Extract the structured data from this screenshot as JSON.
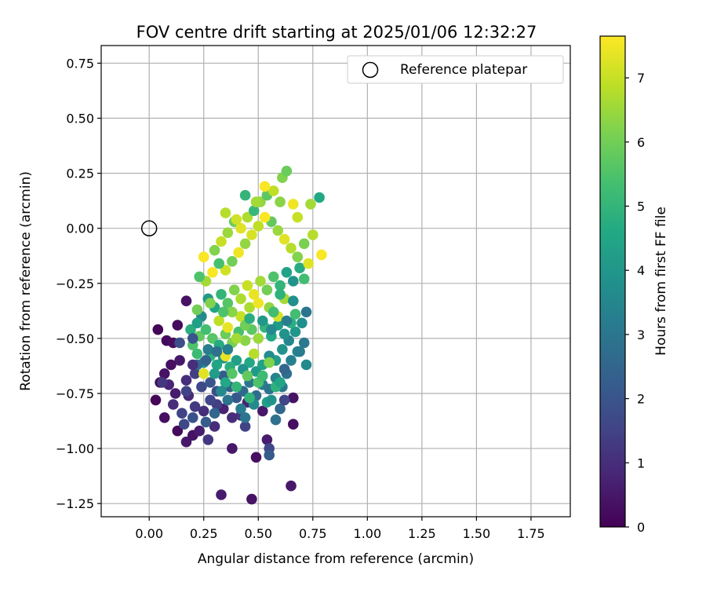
{
  "chart_data": {
    "type": "scatter",
    "title": "FOV centre drift starting at 2025/01/06 12:32:27",
    "xlabel": "Angular distance from reference (arcmin)",
    "ylabel": "Rotation from reference (arcmin)",
    "xlim": [
      -0.22,
      1.93
    ],
    "ylim": [
      -1.31,
      0.83
    ],
    "xticks": [
      0.0,
      0.25,
      0.5,
      0.75,
      1.0,
      1.25,
      1.5,
      1.75
    ],
    "xtick_labels": [
      "0.00",
      "0.25",
      "0.50",
      "0.75",
      "1.00",
      "1.25",
      "1.50",
      "1.75"
    ],
    "yticks": [
      0.75,
      0.5,
      0.25,
      0.0,
      -0.25,
      -0.5,
      -0.75,
      -1.0,
      -1.25
    ],
    "ytick_labels": [
      "0.75",
      "0.50",
      "0.25",
      "0.00",
      "−0.25",
      "−0.50",
      "−0.75",
      "−1.00",
      "−1.25"
    ],
    "grid": true,
    "legend": {
      "placement": "top-right",
      "entries": [
        "Reference platepar"
      ]
    },
    "reference": {
      "name": "Reference platepar",
      "x": 0.0,
      "y": 0.0,
      "marker": "open-circle"
    },
    "colorbar": {
      "label": "Hours from first FF file",
      "min": 0,
      "max": 7.65,
      "ticks": [
        0,
        1,
        2,
        3,
        4,
        5,
        6,
        7
      ],
      "tick_labels": [
        "0",
        "1",
        "2",
        "3",
        "4",
        "5",
        "6",
        "7"
      ],
      "colormap": "viridis"
    },
    "series": [
      {
        "color_by": "hours",
        "points": [
          [
            0.04,
            -0.46,
            0.1
          ],
          [
            0.08,
            -0.51,
            0.2
          ],
          [
            0.11,
            -0.52,
            0.3
          ],
          [
            0.13,
            -0.44,
            0.2
          ],
          [
            0.17,
            -0.33,
            0.4
          ],
          [
            0.14,
            -0.6,
            0.5
          ],
          [
            0.1,
            -0.62,
            0.3
          ],
          [
            0.07,
            -0.66,
            0.4
          ],
          [
            0.05,
            -0.7,
            0.2
          ],
          [
            0.03,
            -0.78,
            0.1
          ],
          [
            0.07,
            -0.86,
            0.3
          ],
          [
            0.13,
            -0.92,
            0.2
          ],
          [
            0.17,
            -0.97,
            0.5
          ],
          [
            0.2,
            -0.94,
            0.4
          ],
          [
            0.23,
            -0.92,
            0.6
          ],
          [
            0.27,
            -0.96,
            1.2
          ],
          [
            0.3,
            -0.9,
            1.0
          ],
          [
            0.33,
            -1.21,
            0.6
          ],
          [
            0.38,
            -1.0,
            0.5
          ],
          [
            0.47,
            -1.23,
            0.4
          ],
          [
            0.49,
            -1.04,
            0.3
          ],
          [
            0.54,
            -0.96,
            0.6
          ],
          [
            0.55,
            -1.0,
            1.6
          ],
          [
            0.55,
            -1.03,
            2.2
          ],
          [
            0.65,
            -1.17,
            0.5
          ],
          [
            0.66,
            -0.89,
            0.3
          ],
          [
            0.66,
            -0.77,
            0.4
          ],
          [
            0.58,
            -0.87,
            2.8
          ],
          [
            0.6,
            -0.82,
            2.5
          ],
          [
            0.62,
            -0.78,
            1.6
          ],
          [
            0.52,
            -0.83,
            0.5
          ],
          [
            0.45,
            -0.79,
            0.8
          ],
          [
            0.42,
            -0.85,
            1.2
          ],
          [
            0.44,
            -0.9,
            1.5
          ],
          [
            0.38,
            -0.86,
            1.0
          ],
          [
            0.34,
            -0.82,
            0.7
          ],
          [
            0.31,
            -0.8,
            1.4
          ],
          [
            0.28,
            -0.78,
            1.6
          ],
          [
            0.25,
            -0.83,
            1.0
          ],
          [
            0.21,
            -0.81,
            1.3
          ],
          [
            0.18,
            -0.76,
            0.9
          ],
          [
            0.15,
            -0.84,
            1.5
          ],
          [
            0.12,
            -0.75,
            0.6
          ],
          [
            0.09,
            -0.71,
            0.8
          ],
          [
            0.06,
            -0.7,
            1.2
          ],
          [
            0.17,
            -0.69,
            1.0
          ],
          [
            0.21,
            -0.66,
            1.4
          ],
          [
            0.24,
            -0.72,
            1.7
          ],
          [
            0.28,
            -0.7,
            2.0
          ],
          [
            0.31,
            -0.74,
            1.8
          ],
          [
            0.34,
            -0.67,
            2.2
          ],
          [
            0.37,
            -0.72,
            2.4
          ],
          [
            0.4,
            -0.77,
            2.1
          ],
          [
            0.43,
            -0.74,
            2.6
          ],
          [
            0.46,
            -0.7,
            3.0
          ],
          [
            0.49,
            -0.76,
            2.7
          ],
          [
            0.52,
            -0.71,
            3.2
          ],
          [
            0.55,
            -0.73,
            2.9
          ],
          [
            0.58,
            -0.68,
            3.4
          ],
          [
            0.61,
            -0.72,
            3.1
          ],
          [
            0.63,
            -0.66,
            2.8
          ],
          [
            0.65,
            -0.6,
            3.3
          ],
          [
            0.68,
            -0.56,
            3.5
          ],
          [
            0.71,
            -0.52,
            3.1
          ],
          [
            0.72,
            -0.62,
            3.6
          ],
          [
            0.72,
            -0.38,
            3.0
          ],
          [
            0.7,
            -0.43,
            3.8
          ],
          [
            0.67,
            -0.47,
            4.0
          ],
          [
            0.64,
            -0.51,
            3.5
          ],
          [
            0.61,
            -0.55,
            3.9
          ],
          [
            0.58,
            -0.6,
            4.2
          ],
          [
            0.55,
            -0.58,
            3.7
          ],
          [
            0.52,
            -0.62,
            4.4
          ],
          [
            0.49,
            -0.65,
            4.1
          ],
          [
            0.46,
            -0.61,
            4.6
          ],
          [
            0.43,
            -0.64,
            3.9
          ],
          [
            0.4,
            -0.6,
            4.3
          ],
          [
            0.37,
            -0.63,
            4.8
          ],
          [
            0.34,
            -0.59,
            4.0
          ],
          [
            0.31,
            -0.62,
            4.5
          ],
          [
            0.28,
            -0.58,
            4.9
          ],
          [
            0.25,
            -0.61,
            3.8
          ],
          [
            0.22,
            -0.57,
            5.2
          ],
          [
            0.2,
            -0.53,
            5.5
          ],
          [
            0.23,
            -0.49,
            5.8
          ],
          [
            0.26,
            -0.46,
            5.3
          ],
          [
            0.29,
            -0.5,
            5.6
          ],
          [
            0.32,
            -0.53,
            4.7
          ],
          [
            0.35,
            -0.48,
            5.9
          ],
          [
            0.38,
            -0.52,
            6.1
          ],
          [
            0.41,
            -0.47,
            5.4
          ],
          [
            0.44,
            -0.51,
            6.3
          ],
          [
            0.47,
            -0.46,
            5.7
          ],
          [
            0.5,
            -0.5,
            6.5
          ],
          [
            0.53,
            -0.45,
            5.0
          ],
          [
            0.56,
            -0.49,
            4.6
          ],
          [
            0.59,
            -0.44,
            4.2
          ],
          [
            0.62,
            -0.48,
            3.9
          ],
          [
            0.65,
            -0.43,
            4.8
          ],
          [
            0.67,
            -0.39,
            5.3
          ],
          [
            0.25,
            -0.66,
            7.3
          ],
          [
            0.35,
            -0.58,
            7.4
          ],
          [
            0.48,
            -0.57,
            6.8
          ],
          [
            0.55,
            -0.61,
            6.2
          ],
          [
            0.45,
            -0.67,
            5.8
          ],
          [
            0.4,
            -0.72,
            5.0
          ],
          [
            0.35,
            -0.7,
            4.6
          ],
          [
            0.3,
            -0.66,
            4.2
          ],
          [
            0.5,
            -0.7,
            5.5
          ],
          [
            0.58,
            -0.72,
            4.9
          ],
          [
            0.54,
            -0.79,
            4.3
          ],
          [
            0.48,
            -0.8,
            3.6
          ],
          [
            0.42,
            -0.82,
            3.2
          ],
          [
            0.36,
            -0.78,
            2.9
          ],
          [
            0.3,
            -0.84,
            2.5
          ],
          [
            0.26,
            -0.88,
            2.2
          ],
          [
            0.2,
            -0.86,
            1.9
          ],
          [
            0.16,
            -0.89,
            1.7
          ],
          [
            0.27,
            -0.55,
            3.2
          ],
          [
            0.24,
            -0.4,
            3.6
          ],
          [
            0.27,
            -0.32,
            4.1
          ],
          [
            0.3,
            -0.36,
            4.5
          ],
          [
            0.33,
            -0.3,
            5.0
          ],
          [
            0.36,
            -0.34,
            5.6
          ],
          [
            0.39,
            -0.28,
            6.2
          ],
          [
            0.42,
            -0.32,
            6.7
          ],
          [
            0.45,
            -0.26,
            7.0
          ],
          [
            0.48,
            -0.3,
            7.4
          ],
          [
            0.51,
            -0.24,
            6.6
          ],
          [
            0.54,
            -0.28,
            6.0
          ],
          [
            0.57,
            -0.22,
            5.5
          ],
          [
            0.6,
            -0.26,
            5.0
          ],
          [
            0.63,
            -0.2,
            4.4
          ],
          [
            0.66,
            -0.24,
            3.9
          ],
          [
            0.69,
            -0.18,
            4.7
          ],
          [
            0.71,
            -0.23,
            5.3
          ],
          [
            0.68,
            -0.13,
            6.2
          ],
          [
            0.65,
            -0.09,
            6.8
          ],
          [
            0.62,
            -0.05,
            7.3
          ],
          [
            0.59,
            -0.01,
            6.5
          ],
          [
            0.56,
            0.03,
            5.8
          ],
          [
            0.53,
            0.05,
            7.6
          ],
          [
            0.5,
            0.01,
            6.9
          ],
          [
            0.47,
            -0.03,
            7.2
          ],
          [
            0.44,
            -0.07,
            6.4
          ],
          [
            0.41,
            -0.11,
            7.5
          ],
          [
            0.38,
            -0.15,
            6.0
          ],
          [
            0.35,
            -0.19,
            7.1
          ],
          [
            0.32,
            -0.16,
            5.4
          ],
          [
            0.29,
            -0.2,
            7.6
          ],
          [
            0.26,
            -0.24,
            6.6
          ],
          [
            0.23,
            -0.22,
            5.5
          ],
          [
            0.25,
            -0.13,
            7.6
          ],
          [
            0.3,
            -0.1,
            6.2
          ],
          [
            0.33,
            -0.06,
            7.0
          ],
          [
            0.36,
            -0.02,
            6.5
          ],
          [
            0.39,
            0.03,
            5.9
          ],
          [
            0.42,
            0.0,
            7.3
          ],
          [
            0.45,
            0.05,
            6.7
          ],
          [
            0.48,
            0.08,
            5.1
          ],
          [
            0.51,
            0.12,
            6.4
          ],
          [
            0.54,
            0.15,
            5.7
          ],
          [
            0.57,
            0.17,
            6.9
          ],
          [
            0.53,
            0.19,
            7.6
          ],
          [
            0.61,
            0.23,
            6.2
          ],
          [
            0.63,
            0.26,
            5.9
          ],
          [
            0.44,
            0.15,
            5.0
          ],
          [
            0.49,
            0.12,
            6.6
          ],
          [
            0.35,
            0.07,
            6.8
          ],
          [
            0.4,
            0.04,
            7.1
          ],
          [
            0.6,
            0.12,
            6.3
          ],
          [
            0.66,
            0.11,
            7.5
          ],
          [
            0.68,
            0.05,
            7.0
          ],
          [
            0.74,
            0.11,
            6.6
          ],
          [
            0.78,
            0.14,
            4.6
          ],
          [
            0.75,
            -0.03,
            6.8
          ],
          [
            0.79,
            -0.12,
            7.6
          ],
          [
            0.73,
            -0.16,
            7.3
          ],
          [
            0.71,
            -0.07,
            6.1
          ],
          [
            0.36,
            -0.45,
            7.4
          ],
          [
            0.42,
            -0.4,
            7.0
          ],
          [
            0.46,
            -0.36,
            6.7
          ],
          [
            0.38,
            -0.38,
            6.3
          ],
          [
            0.32,
            -0.42,
            6.9
          ],
          [
            0.5,
            -0.34,
            7.5
          ],
          [
            0.55,
            -0.36,
            6.4
          ],
          [
            0.59,
            -0.4,
            7.2
          ],
          [
            0.62,
            -0.32,
            6.6
          ],
          [
            0.57,
            -0.38,
            5.3
          ],
          [
            0.6,
            -0.3,
            4.9
          ],
          [
            0.44,
            -0.44,
            6.0
          ],
          [
            0.4,
            -0.5,
            6.6
          ],
          [
            0.34,
            -0.38,
            5.5
          ],
          [
            0.28,
            -0.34,
            6.2
          ],
          [
            0.22,
            -0.37,
            6.0
          ],
          [
            0.19,
            -0.46,
            4.8
          ],
          [
            0.22,
            -0.43,
            4.3
          ],
          [
            0.14,
            -0.52,
            1.8
          ],
          [
            0.2,
            -0.5,
            2.0
          ],
          [
            0.22,
            -0.62,
            2.6
          ],
          [
            0.26,
            -0.6,
            2.4
          ],
          [
            0.31,
            -0.56,
            2.8
          ],
          [
            0.36,
            -0.55,
            3.3
          ],
          [
            0.62,
            -0.64,
            2.5
          ],
          [
            0.69,
            -0.56,
            3.2
          ],
          [
            0.17,
            -0.74,
            1.5
          ],
          [
            0.11,
            -0.8,
            1.0
          ],
          [
            0.2,
            -0.62,
            1.0
          ],
          [
            0.33,
            -0.74,
            3.6
          ],
          [
            0.44,
            -0.86,
            3.0
          ],
          [
            0.56,
            -0.78,
            3.9
          ],
          [
            0.6,
            -0.7,
            4.5
          ],
          [
            0.52,
            -0.67,
            5.2
          ],
          [
            0.46,
            -0.77,
            5.0
          ],
          [
            0.38,
            -0.66,
            5.6
          ],
          [
            0.46,
            -0.41,
            4.8
          ],
          [
            0.52,
            -0.42,
            4.1
          ],
          [
            0.56,
            -0.46,
            3.6
          ],
          [
            0.63,
            -0.42,
            3.2
          ],
          [
            0.66,
            -0.33,
            3.8
          ]
        ]
      }
    ]
  }
}
